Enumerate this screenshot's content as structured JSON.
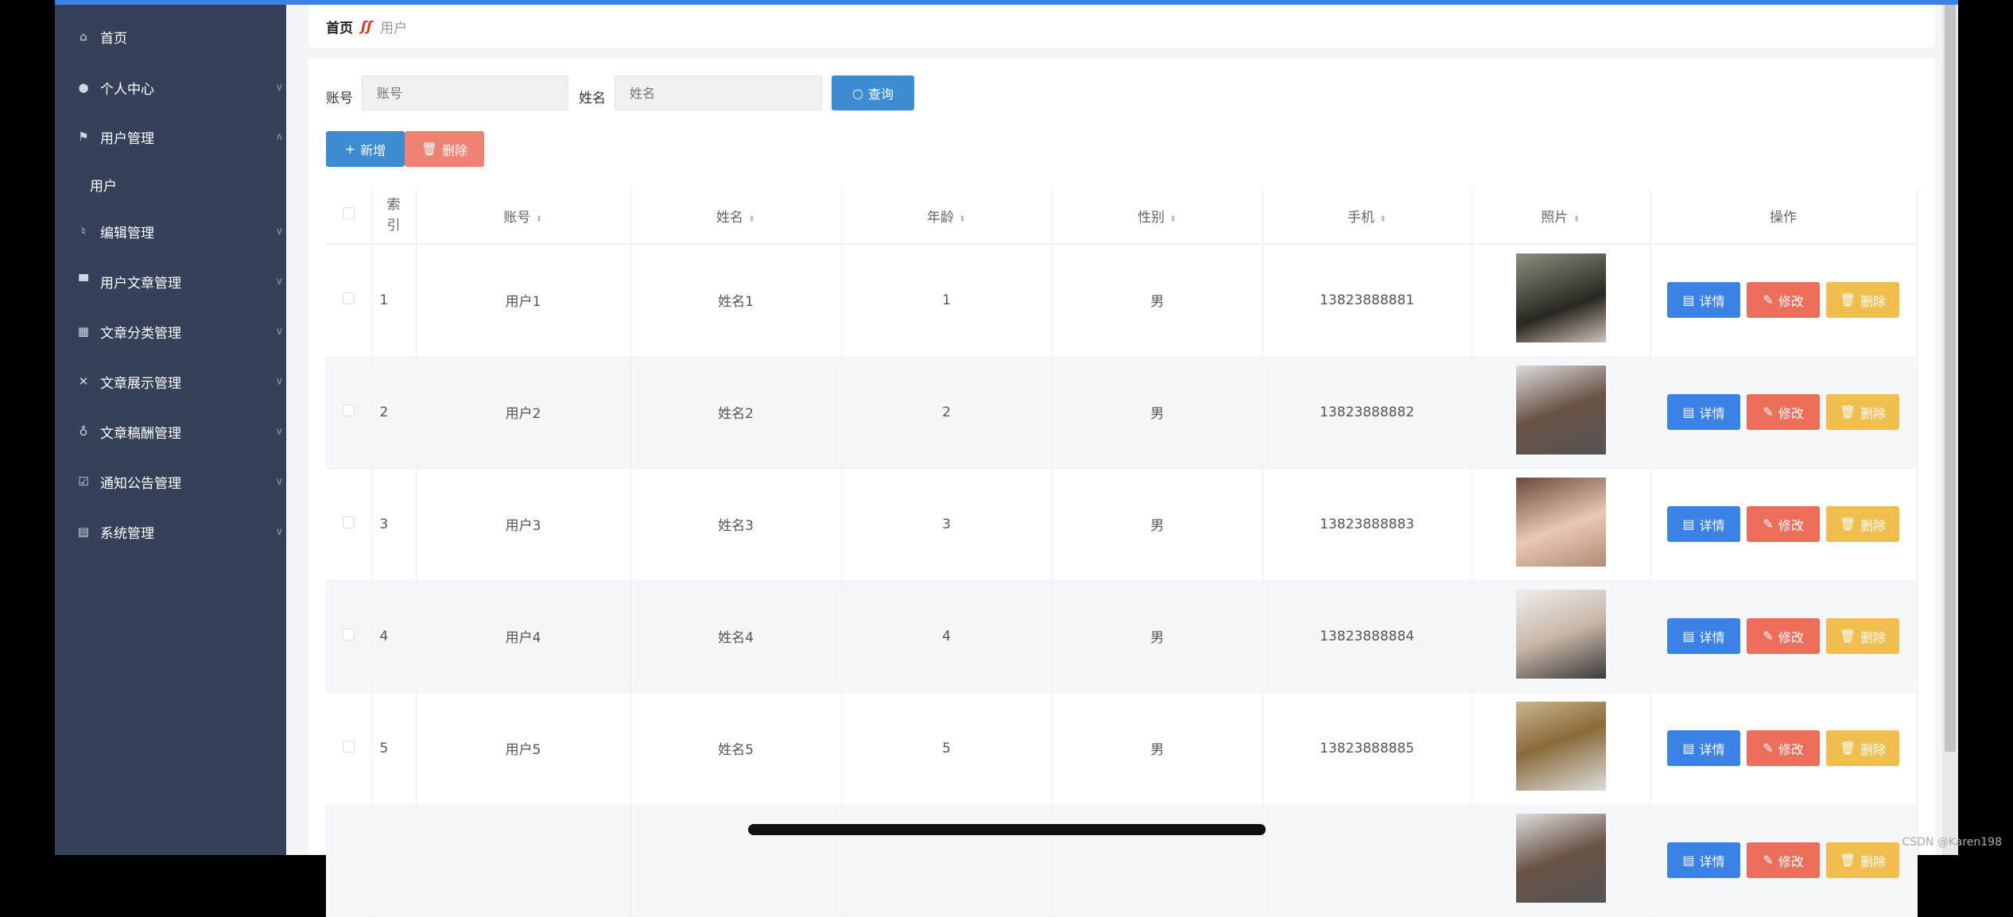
{
  "sidebar": {
    "items": [
      {
        "label": "首页",
        "icon": "home-icon",
        "glyph": "⌂",
        "chevron": ""
      },
      {
        "label": "个人中心",
        "icon": "user-icon",
        "glyph": "●",
        "chevron": "∨"
      },
      {
        "label": "用户管理",
        "icon": "flag-icon",
        "glyph": "⚑",
        "chevron": "∧"
      },
      {
        "label": "用户",
        "icon": "",
        "glyph": "",
        "chevron": "",
        "sub": true
      },
      {
        "label": "编辑管理",
        "icon": "bell-off-icon",
        "glyph": "♮",
        "chevron": "∨"
      },
      {
        "label": "用户文章管理",
        "icon": "monitor-icon",
        "glyph": "▀",
        "chevron": "∨"
      },
      {
        "label": "文章分类管理",
        "icon": "grid-icon",
        "glyph": "▦",
        "chevron": "∨"
      },
      {
        "label": "文章展示管理",
        "icon": "ticket-icon",
        "glyph": "✕",
        "chevron": "∨"
      },
      {
        "label": "文章稿酬管理",
        "icon": "microphone-icon",
        "glyph": "♁",
        "chevron": "∨"
      },
      {
        "label": "通知公告管理",
        "icon": "checkbox-icon",
        "glyph": "☑",
        "chevron": "∨"
      },
      {
        "label": "系统管理",
        "icon": "clipboard-icon",
        "glyph": "▤",
        "chevron": "∨"
      }
    ]
  },
  "breadcrumb": {
    "home": "首页",
    "separator": "ʃʃ",
    "current": "用户"
  },
  "search": {
    "account_label": "账号",
    "account_placeholder": "账号",
    "account_value": "",
    "name_label": "姓名",
    "name_placeholder": "姓名",
    "name_value": "",
    "query_label": "查询"
  },
  "toolbar": {
    "add_label": "新增",
    "delete_label": "删除"
  },
  "table": {
    "columns": [
      "索引",
      "账号",
      "姓名",
      "年龄",
      "性别",
      "手机",
      "照片",
      "操作"
    ],
    "rows": [
      {
        "index": "1",
        "account": "用户1",
        "name": "姓名1",
        "age": "1",
        "gender": "男",
        "phone": "13823888881"
      },
      {
        "index": "2",
        "account": "用户2",
        "name": "姓名2",
        "age": "2",
        "gender": "男",
        "phone": "13823888882"
      },
      {
        "index": "3",
        "account": "用户3",
        "name": "姓名3",
        "age": "3",
        "gender": "男",
        "phone": "13823888883"
      },
      {
        "index": "4",
        "account": "用户4",
        "name": "姓名4",
        "age": "4",
        "gender": "男",
        "phone": "13823888884"
      },
      {
        "index": "5",
        "account": "用户5",
        "name": "姓名5",
        "age": "5",
        "gender": "男",
        "phone": "13823888885"
      }
    ],
    "actions": {
      "detail": "详情",
      "edit": "修改",
      "delete": "删除"
    }
  },
  "watermark": "CSDN @Karen198",
  "colors": {
    "primary": "#3b82e6",
    "danger": "#ee6e5c",
    "warning": "#f2bd4f",
    "sidebar": "#344158",
    "query": "#3d8bd0",
    "add": "#3d8bd0",
    "bulk_delete": "#ef8272"
  }
}
